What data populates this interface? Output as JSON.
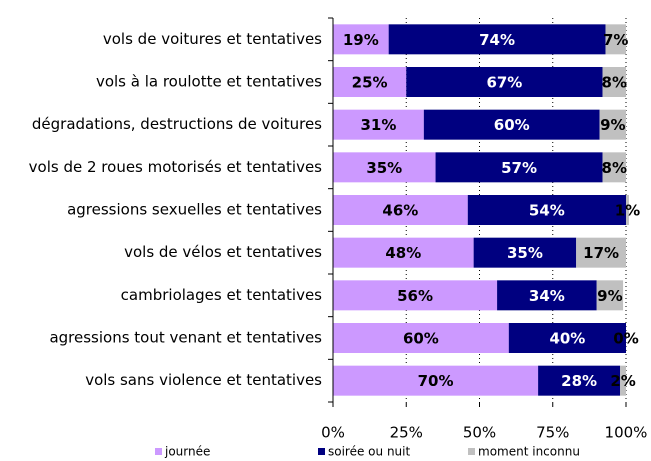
{
  "chart_data": {
    "type": "stacked-bar-horizontal",
    "categories": [
      "vols de voitures et tentatives",
      "vols à la roulotte et tentatives",
      "dégradations, destructions de voitures",
      "vols de 2 roues motorisés et tentatives",
      "agressions sexuelles et tentatives",
      "vols de vélos et tentatives",
      "cambriolages et tentatives",
      "agressions tout venant et tentatives",
      "vols sans violence et tentatives"
    ],
    "series": [
      {
        "name": "journée",
        "color": "#cc99ff",
        "values": [
          19,
          25,
          31,
          35,
          46,
          48,
          56,
          60,
          70
        ],
        "value_labels": [
          "19%",
          "25%",
          "31%",
          "35%",
          "46%",
          "48%",
          "56%",
          "60%",
          "70%"
        ]
      },
      {
        "name": "soirée ou nuit",
        "color": "#000080",
        "values": [
          74,
          67,
          60,
          57,
          54,
          35,
          34,
          40,
          28
        ],
        "value_labels": [
          "74%",
          "67%",
          "60%",
          "57%",
          "54%",
          "35%",
          "34%",
          "40%",
          "28%"
        ]
      },
      {
        "name": "moment inconnu",
        "color": "#c0c0c0",
        "values": [
          7,
          8,
          9,
          8,
          1,
          17,
          9,
          0,
          2
        ],
        "value_labels": [
          "7%",
          "8%",
          "9%",
          "8%",
          "1%",
          "17%",
          "9%",
          "0%",
          "2%"
        ]
      }
    ],
    "xlim": [
      0,
      100
    ],
    "xticks": [
      {
        "value": 0,
        "label": "0%"
      },
      {
        "value": 25,
        "label": "25%"
      },
      {
        "value": 50,
        "label": "50%"
      },
      {
        "value": 75,
        "label": "75%"
      },
      {
        "value": 100,
        "label": "100%"
      }
    ],
    "grid": true,
    "legend": "bottom"
  }
}
